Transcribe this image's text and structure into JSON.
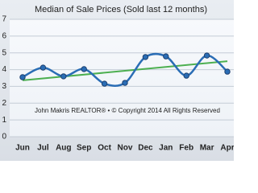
{
  "chart_data": {
    "type": "line",
    "title": "Median of Sale Prices (Sold last 12 months)",
    "categories": [
      "Jun",
      "Jul",
      "Aug",
      "Sep",
      "Oct",
      "Nov",
      "Dec",
      "Jan",
      "Feb",
      "Mar",
      "Apr"
    ],
    "values": [
      3.55,
      4.12,
      3.6,
      4.03,
      3.16,
      3.21,
      4.75,
      4.79,
      3.64,
      4.84,
      3.88
    ],
    "color": "#2a6db5",
    "trendline": {
      "color": "#4caf50",
      "start": 3.36,
      "end": 4.5
    },
    "annotation": "John Makris REALTOR® • © Copyright 2014 All Rights Reserved",
    "ylim": [
      0,
      7
    ],
    "yticks": [
      0,
      1,
      2,
      3,
      4,
      5,
      6,
      7
    ],
    "grid": true
  }
}
